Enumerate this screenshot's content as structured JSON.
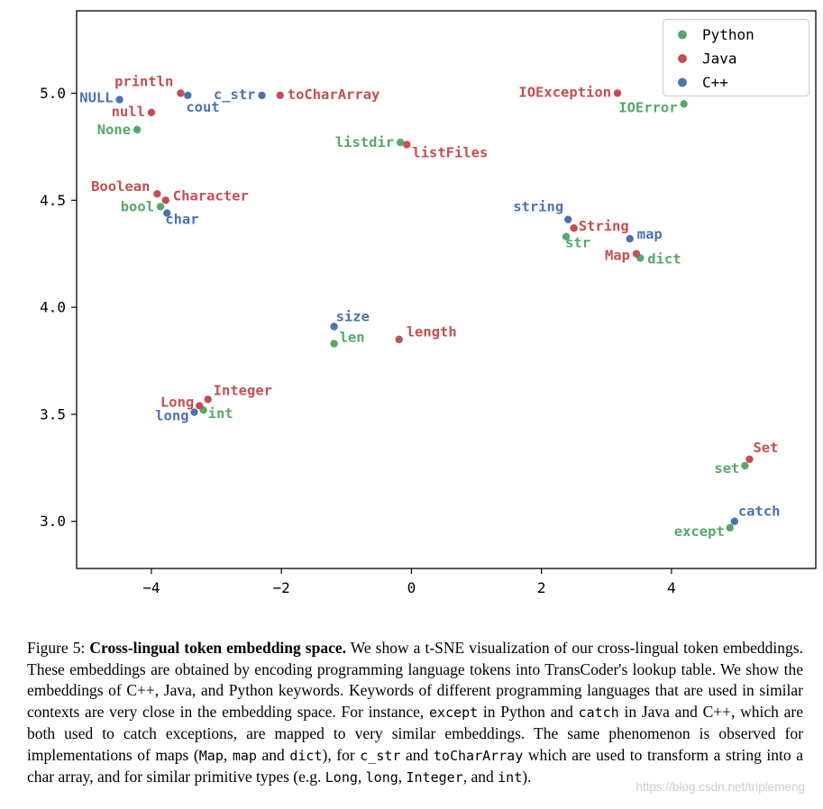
{
  "figure": {
    "watermark": "https://blog.csdn.net/triplemeng",
    "caption_segments": [
      {
        "t": "Figure 5: ",
        "s": "normal"
      },
      {
        "t": "Cross-lingual token embedding space.",
        "s": "bold"
      },
      {
        "t": " We show a t-SNE visualization of our cross-lingual token embeddings. These embeddings are obtained by encoding programming language tokens into TransCoder's lookup table. We show the embeddings of C++, Java, and Python keywords. Keywords of different programming languages that are used in similar contexts are very close in the embedding space. For instance, ",
        "s": "normal"
      },
      {
        "t": "except",
        "s": "code"
      },
      {
        "t": " in Python and ",
        "s": "normal"
      },
      {
        "t": "catch",
        "s": "code"
      },
      {
        "t": " in Java and C++, which are both used to catch exceptions, are mapped to very similar embeddings. The same phenomenon is observed for implementations of maps (",
        "s": "normal"
      },
      {
        "t": "Map",
        "s": "code"
      },
      {
        "t": ", ",
        "s": "normal"
      },
      {
        "t": "map",
        "s": "code"
      },
      {
        "t": " and ",
        "s": "normal"
      },
      {
        "t": "dict",
        "s": "code"
      },
      {
        "t": "), for ",
        "s": "normal"
      },
      {
        "t": "c_str",
        "s": "code"
      },
      {
        "t": " and ",
        "s": "normal"
      },
      {
        "t": "toCharArray",
        "s": "code"
      },
      {
        "t": " which are used to transform a string into a char array, and for similar primitive types (e.g. ",
        "s": "normal"
      },
      {
        "t": "Long",
        "s": "code"
      },
      {
        "t": ", ",
        "s": "normal"
      },
      {
        "t": "long",
        "s": "code"
      },
      {
        "t": ", ",
        "s": "normal"
      },
      {
        "t": "Integer",
        "s": "code"
      },
      {
        "t": ", and ",
        "s": "normal"
      },
      {
        "t": "int",
        "s": "code"
      },
      {
        "t": ").",
        "s": "normal"
      }
    ]
  },
  "chart_data": {
    "type": "scatter",
    "title": "",
    "xlabel": "",
    "ylabel": "",
    "xlim": [
      -5.15,
      6.22
    ],
    "ylim": [
      2.78,
      5.385
    ],
    "x_ticks": [
      -4,
      -2,
      0,
      2,
      4
    ],
    "x_tick_labels": [
      "−4",
      "−2",
      "0",
      "2",
      "4"
    ],
    "y_ticks": [
      3.0,
      3.5,
      4.0,
      4.5,
      5.0
    ],
    "y_tick_labels": [
      "3.0",
      "3.5",
      "4.0",
      "4.5",
      "5.0"
    ],
    "grid": false,
    "legend": {
      "position": "upper-right",
      "entries": [
        {
          "label": "Python",
          "color": "#55a868"
        },
        {
          "label": "Java",
          "color": "#c44e52"
        },
        {
          "label": "C++",
          "color": "#4c72b0"
        }
      ]
    },
    "series": [
      {
        "name": "Python",
        "color": "#55a868",
        "points": [
          {
            "token": "None",
            "x": -4.22,
            "y": 4.83,
            "dx": -7,
            "dy": 5,
            "anchor": "end"
          },
          {
            "token": "bool",
            "x": -3.86,
            "y": 4.47,
            "dx": -7,
            "dy": 5,
            "anchor": "end"
          },
          {
            "token": "str",
            "x": 2.38,
            "y": 4.33,
            "dx": -1,
            "dy": 12,
            "anchor": "start"
          },
          {
            "token": "dict",
            "x": 3.52,
            "y": 4.23,
            "dx": 8,
            "dy": 6,
            "anchor": "start"
          },
          {
            "token": "len",
            "x": -1.19,
            "y": 3.83,
            "dx": 6,
            "dy": -2,
            "anchor": "start"
          },
          {
            "token": "int",
            "x": -3.2,
            "y": 3.52,
            "dx": 5,
            "dy": 9,
            "anchor": "start"
          },
          {
            "token": "set",
            "x": 5.13,
            "y": 3.26,
            "dx": -6,
            "dy": 8,
            "anchor": "end"
          },
          {
            "token": "except",
            "x": 4.9,
            "y": 2.97,
            "dx": -6,
            "dy": 9,
            "anchor": "end"
          },
          {
            "token": "listdir",
            "x": -0.17,
            "y": 4.77,
            "dx": -7,
            "dy": 5,
            "anchor": "end"
          },
          {
            "token": "IOError",
            "x": 4.19,
            "y": 4.95,
            "dx": -7,
            "dy": 9,
            "anchor": "end"
          }
        ]
      },
      {
        "name": "Java",
        "color": "#c44e52",
        "points": [
          {
            "token": "println",
            "x": -3.55,
            "y": 5.0,
            "dx": -8,
            "dy": -8,
            "anchor": "end"
          },
          {
            "token": "null",
            "x": -4.0,
            "y": 4.91,
            "dx": -7,
            "dy": 4,
            "anchor": "end"
          },
          {
            "token": "toCharArray",
            "x": -2.02,
            "y": 4.99,
            "dx": 8,
            "dy": 4,
            "anchor": "start"
          },
          {
            "token": "listFiles",
            "x": -0.07,
            "y": 4.76,
            "dx": 6,
            "dy": 14,
            "anchor": "start"
          },
          {
            "token": "IOException",
            "x": 3.17,
            "y": 5.0,
            "dx": -7,
            "dy": 4,
            "anchor": "end"
          },
          {
            "token": "Boolean",
            "x": -3.91,
            "y": 4.53,
            "dx": -8,
            "dy": -3,
            "anchor": "end"
          },
          {
            "token": "Character",
            "x": -3.78,
            "y": 4.5,
            "dx": 8,
            "dy": 0,
            "anchor": "start"
          },
          {
            "token": "String",
            "x": 2.5,
            "y": 4.37,
            "dx": 5,
            "dy": 3,
            "anchor": "start"
          },
          {
            "token": "Map",
            "x": 3.46,
            "y": 4.25,
            "dx": -7,
            "dy": 7,
            "anchor": "end"
          },
          {
            "token": "length",
            "x": -0.19,
            "y": 3.85,
            "dx": 8,
            "dy": -3,
            "anchor": "start"
          },
          {
            "token": "Integer",
            "x": -3.13,
            "y": 3.57,
            "dx": 6,
            "dy": -5,
            "anchor": "start"
          },
          {
            "token": "Long",
            "x": -3.26,
            "y": 3.54,
            "dx": -6,
            "dy": 1,
            "anchor": "end"
          },
          {
            "token": "Set",
            "x": 5.2,
            "y": 3.29,
            "dx": 4,
            "dy": -8,
            "anchor": "start"
          }
        ]
      },
      {
        "name": "C++",
        "color": "#4c72b0",
        "points": [
          {
            "token": "NULL",
            "x": -4.49,
            "y": 4.97,
            "dx": -7,
            "dy": 3,
            "anchor": "end"
          },
          {
            "token": "cout",
            "x": -3.44,
            "y": 4.99,
            "dx": -2,
            "dy": 18,
            "anchor": "start"
          },
          {
            "token": "c_str",
            "x": -2.3,
            "y": 4.99,
            "dx": -7,
            "dy": 4,
            "anchor": "end"
          },
          {
            "token": "string",
            "x": 2.41,
            "y": 4.41,
            "dx": -5,
            "dy": -9,
            "anchor": "end"
          },
          {
            "token": "map",
            "x": 3.36,
            "y": 4.32,
            "dx": 8,
            "dy": 0,
            "anchor": "start"
          },
          {
            "token": "size",
            "x": -1.19,
            "y": 3.91,
            "dx": 2,
            "dy": -6,
            "anchor": "start"
          },
          {
            "token": "char",
            "x": -3.76,
            "y": 4.44,
            "dx": -2,
            "dy": 12,
            "anchor": "start"
          },
          {
            "token": "long",
            "x": -3.34,
            "y": 3.51,
            "dx": -6,
            "dy": 9,
            "anchor": "end"
          },
          {
            "token": "catch",
            "x": 4.97,
            "y": 3.0,
            "dx": 4,
            "dy": -6,
            "anchor": "start"
          }
        ]
      }
    ]
  }
}
